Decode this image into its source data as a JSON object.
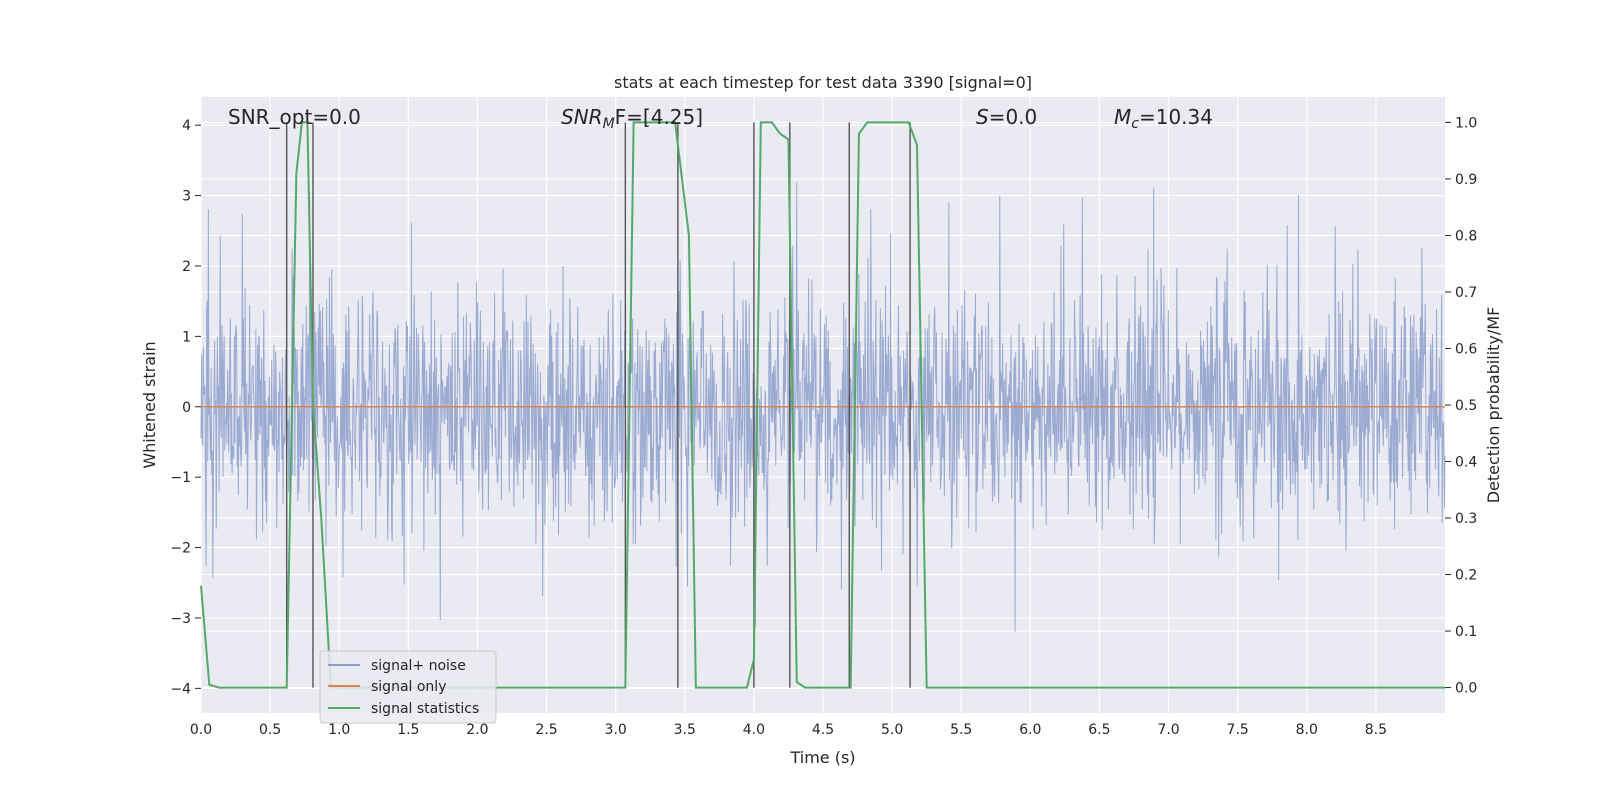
{
  "chart_data": {
    "type": "line",
    "title": "stats at each timestep for test data 3390 [signal=0]",
    "xlabel": "Time (s)",
    "ylabel_left": "Whitened strain",
    "ylabel_right": "Detection probability/MF",
    "xlim": [
      0.0,
      9.0
    ],
    "ylim_left": [
      -4.35,
      4.4
    ],
    "ylim_right": [
      -0.045,
      1.045
    ],
    "x_ticks": [
      "0.0",
      "0.5",
      "1.0",
      "1.5",
      "2.0",
      "2.5",
      "3.0",
      "3.5",
      "4.0",
      "4.5",
      "5.0",
      "5.5",
      "6.0",
      "6.5",
      "7.0",
      "7.5",
      "8.0",
      "8.5"
    ],
    "y_left_ticks": [
      "4",
      "3",
      "2",
      "1",
      "0",
      "−1",
      "−2",
      "−3",
      "−4"
    ],
    "y_right_ticks": [
      "1.0",
      "0.9",
      "0.8",
      "0.7",
      "0.6",
      "0.5",
      "0.4",
      "0.3",
      "0.2",
      "0.1",
      "0.0"
    ],
    "grid": true,
    "legend_position": "lower-left",
    "annotations": {
      "snr_opt": "SNR_opt=0.0",
      "snr_mf_main": "SNR",
      "snr_mf_sub": "M",
      "snr_mf_rest": "F=[4.25]",
      "s_sym": "S",
      "s_rest": "=0.0",
      "mc_sym": "M",
      "mc_sub": "c",
      "mc_rest": "=10.34"
    },
    "noise": {
      "typical_abs": 1.9,
      "peak_abs": 3.4,
      "mean": 0.0
    },
    "series": [
      {
        "name": "signal+ noise",
        "color": "#8c9fcb",
        "axis": "left"
      },
      {
        "name": "signal only",
        "color": "#dd8452",
        "axis": "left",
        "x": [
          0.0,
          9.0
        ],
        "y": [
          0.0,
          0.0
        ]
      },
      {
        "name": "signal statistics",
        "color": "#55a868",
        "axis": "right",
        "x": [
          0.0,
          0.06,
          0.13,
          0.62,
          0.69,
          0.73,
          0.77,
          0.81,
          0.87,
          0.94,
          3.07,
          3.13,
          3.43,
          3.53,
          3.58,
          3.95,
          4.0,
          4.05,
          4.13,
          4.19,
          4.25,
          4.31,
          4.37,
          4.7,
          4.76,
          4.82,
          5.12,
          5.18,
          5.25,
          9.0
        ],
        "y": [
          0.18,
          0.005,
          0.0,
          0.0,
          0.91,
          1.0,
          1.0,
          0.5,
          0.3,
          0.0,
          0.0,
          1.0,
          1.0,
          0.8,
          0.0,
          0.0,
          0.05,
          1.0,
          1.0,
          0.98,
          0.97,
          0.01,
          0.0,
          0.0,
          0.98,
          1.0,
          1.0,
          0.96,
          0.0,
          0.0
        ]
      }
    ],
    "vertical_markers_x": [
      0.62,
      0.81,
      3.07,
      3.45,
      4.0,
      4.26,
      4.69,
      5.13
    ]
  }
}
